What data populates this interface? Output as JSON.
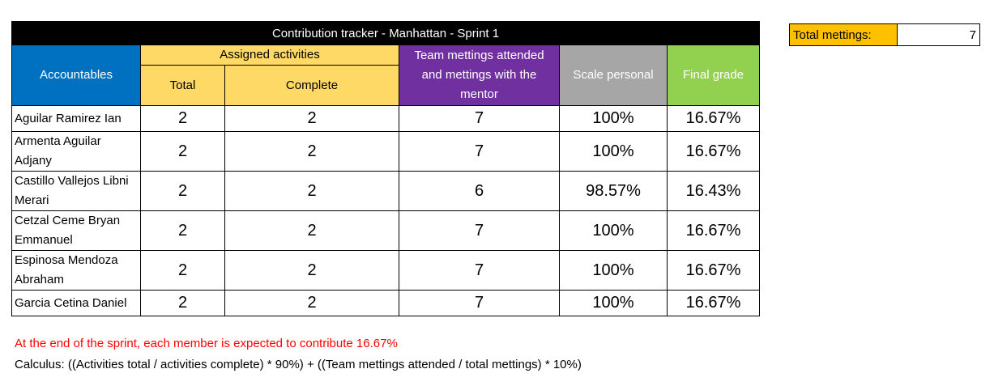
{
  "tracker": {
    "title": "Contribution tracker - Manhattan - Sprint 1",
    "headers": {
      "accountables": "Accountables",
      "assigned_activities": "Assigned activities",
      "total": "Total",
      "complete": "Complete",
      "team_meetings": "Team mettings attended and mettings with the mentor",
      "scale_personal": "Scale personal",
      "final_grade": "Final grade"
    },
    "rows": [
      {
        "name": "Aguilar Ramirez Ian",
        "total": "2",
        "complete": "2",
        "meetings": "7",
        "scale": "100%",
        "grade": "16.67%"
      },
      {
        "name": "Armenta Aguilar Adjany",
        "total": "2",
        "complete": "2",
        "meetings": "7",
        "scale": "100%",
        "grade": "16.67%"
      },
      {
        "name": "Castillo Vallejos Libni Merari",
        "total": "2",
        "complete": "2",
        "meetings": "6",
        "scale": "98.57%",
        "grade": "16.43%"
      },
      {
        "name": "Cetzal Ceme Bryan Emmanuel",
        "total": "2",
        "complete": "2",
        "meetings": "7",
        "scale": "100%",
        "grade": "16.67%"
      },
      {
        "name": "Espinosa Mendoza Abraham",
        "total": "2",
        "complete": "2",
        "meetings": "7",
        "scale": "100%",
        "grade": "16.67%"
      },
      {
        "name": "Garcia Cetina Daniel",
        "total": "2",
        "complete": "2",
        "meetings": "7",
        "scale": "100%",
        "grade": "16.67%"
      }
    ]
  },
  "summary": {
    "label": "Total mettings:",
    "value": "7"
  },
  "notes": {
    "expectation": "At the end of the sprint, each member is expected to contribute 16.67%",
    "calculus": "Calculus: ((Activities total / activities complete) * 90%) + ((Team mettings attended / total mettings) * 10%)"
  },
  "colors": {
    "title_bg": "#000000",
    "accountables_bg": "#0070c0",
    "assigned_bg": "#ffd966",
    "meetings_bg": "#7030a0",
    "scale_bg": "#a6a6a6",
    "grade_bg": "#92d050",
    "total_label_bg": "#ffc000",
    "note_red": "#ff0000"
  }
}
